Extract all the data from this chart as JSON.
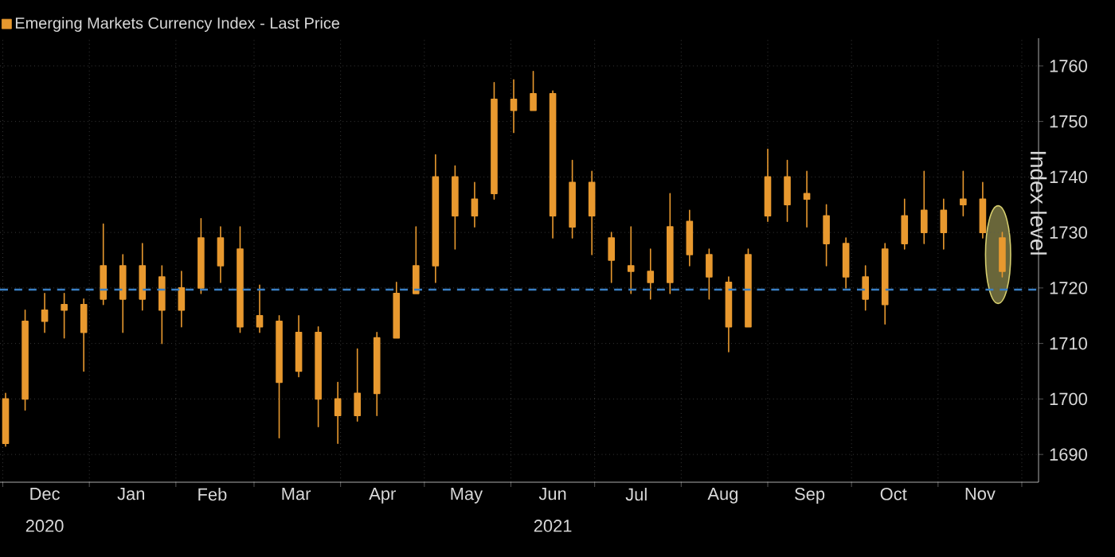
{
  "chart_data": {
    "type": "candlestick",
    "ylabel": "Index level",
    "annotations": [
      "2020",
      "2021"
    ],
    "x": [
      "2020-12-02",
      "2020-12-09",
      "2020-12-16",
      "2020-12-23",
      "2020-12-30",
      "2021-01-06",
      "2021-01-13",
      "2021-01-20",
      "2021-01-27",
      "2021-02-03",
      "2021-02-10",
      "2021-02-17",
      "2021-02-24",
      "2021-03-03",
      "2021-03-10",
      "2021-03-17",
      "2021-03-24",
      "2021-03-31",
      "2021-04-07",
      "2021-04-14",
      "2021-04-21",
      "2021-04-28",
      "2021-05-05",
      "2021-05-12",
      "2021-05-19",
      "2021-05-26",
      "2021-06-02",
      "2021-06-09",
      "2021-06-16",
      "2021-06-23",
      "2021-06-30",
      "2021-07-07",
      "2021-07-14",
      "2021-07-21",
      "2021-07-28",
      "2021-08-04",
      "2021-08-11",
      "2021-08-18",
      "2021-08-25",
      "2021-09-01",
      "2021-09-08",
      "2021-09-15",
      "2021-09-22",
      "2021-09-29",
      "2021-10-06",
      "2021-10-13",
      "2021-10-20",
      "2021-10-27",
      "2021-11-03",
      "2021-11-10",
      "2021-11-17",
      "2021-11-24"
    ],
    "series": [
      {
        "name": "Emerging Markets Currency Index - Last Price",
        "color": "#e8992f",
        "ohlc": [
          [
            1692,
            1701,
            1691.5,
            1700
          ],
          [
            1700,
            1716,
            1698,
            1714
          ],
          [
            1714,
            1719,
            1712,
            1716
          ],
          [
            1716,
            1719,
            1711,
            1717
          ],
          [
            1717,
            1718,
            1705,
            1712
          ],
          [
            1718,
            1731.5,
            1717,
            1724
          ],
          [
            1724,
            1726,
            1712,
            1718
          ],
          [
            1718,
            1728,
            1716,
            1724
          ],
          [
            1722,
            1724,
            1710,
            1716
          ],
          [
            1716,
            1723,
            1713,
            1720
          ],
          [
            1720,
            1732.5,
            1719,
            1729
          ],
          [
            1729,
            1731,
            1721,
            1724
          ],
          [
            1727,
            1731,
            1712,
            1713
          ],
          [
            1713,
            1720.5,
            1712,
            1715
          ],
          [
            1714,
            1715,
            1693,
            1703
          ],
          [
            1705,
            1715,
            1704,
            1712
          ],
          [
            1712,
            1713,
            1695,
            1700
          ],
          [
            1700,
            1703,
            1692,
            1697
          ],
          [
            1697,
            1709,
            1696,
            1701
          ],
          [
            1701,
            1712,
            1697,
            1711
          ],
          [
            1711,
            1721,
            1711,
            1719
          ],
          [
            1719,
            1731,
            1719,
            1724
          ],
          [
            1724,
            1744,
            1721,
            1740
          ],
          [
            1740,
            1742,
            1727,
            1733
          ],
          [
            1733,
            1739,
            1731,
            1736
          ],
          [
            1737,
            1757,
            1736,
            1754
          ],
          [
            1754,
            1757.5,
            1748,
            1752
          ],
          [
            1752,
            1759,
            1752,
            1755
          ],
          [
            1755,
            1755.5,
            1729,
            1733
          ],
          [
            1731,
            1743,
            1729,
            1739
          ],
          [
            1739,
            1741,
            1726,
            1733
          ],
          [
            1729,
            1730,
            1721,
            1725
          ],
          [
            1724,
            1731,
            1719,
            1723
          ],
          [
            1723,
            1727,
            1718,
            1721
          ],
          [
            1721,
            1737,
            1719,
            1731
          ],
          [
            1732,
            1734,
            1724,
            1726
          ],
          [
            1726,
            1727,
            1718,
            1722
          ],
          [
            1721,
            1722,
            1708.5,
            1713
          ],
          [
            1713,
            1727,
            1713,
            1726
          ],
          [
            1733,
            1745,
            1732,
            1740
          ],
          [
            1740,
            1743,
            1732,
            1735
          ],
          [
            1736,
            1741,
            1731,
            1737
          ],
          [
            1733,
            1735,
            1724,
            1728
          ],
          [
            1728,
            1729,
            1720,
            1722
          ],
          [
            1722,
            1724,
            1716,
            1718
          ],
          [
            1717,
            1728,
            1713.5,
            1727
          ],
          [
            1728,
            1736,
            1727,
            1733
          ],
          [
            1734,
            1741,
            1728,
            1730
          ],
          [
            1730,
            1736,
            1727,
            1734
          ],
          [
            1735,
            1741,
            1733,
            1736
          ],
          [
            1736,
            1739,
            1729,
            1730
          ],
          [
            1729,
            1730,
            1722,
            1723
          ]
        ]
      }
    ],
    "xlim": [
      "2020-11-30",
      "2021-12-07"
    ],
    "xticks": [
      {
        "value": "2020-12-01",
        "label": null
      },
      {
        "value": "2021-01-01",
        "label": null
      },
      {
        "value": "2021-02-01",
        "label": null
      },
      {
        "value": "2021-03-01",
        "label": null
      },
      {
        "value": "2021-04-01",
        "label": null
      },
      {
        "value": "2021-05-01",
        "label": null
      },
      {
        "value": "2021-06-01",
        "label": null
      },
      {
        "value": "2021-07-01",
        "label": null
      },
      {
        "value": "2021-08-01",
        "label": null
      },
      {
        "value": "2021-09-01",
        "label": null
      },
      {
        "value": "2021-10-01",
        "label": null
      },
      {
        "value": "2021-11-01",
        "label": null
      },
      {
        "value": "2021-12-01",
        "label": null
      },
      {
        "value": "2020-12-16",
        "label": "Dec"
      },
      {
        "value": "2021-01-16",
        "label": "Jan"
      },
      {
        "value": "2021-02-14",
        "label": "Feb"
      },
      {
        "value": "2021-03-16",
        "label": "Mar"
      },
      {
        "value": "2021-04-16",
        "label": "Apr"
      },
      {
        "value": "2021-05-16",
        "label": "May"
      },
      {
        "value": "2021-06-16",
        "label": "Jun"
      },
      {
        "value": "2021-07-16",
        "label": "Jul"
      },
      {
        "value": "2021-08-16",
        "label": "Aug"
      },
      {
        "value": "2021-09-16",
        "label": "Sep"
      },
      {
        "value": "2021-10-16",
        "label": "Oct"
      },
      {
        "value": "2021-11-16",
        "label": "Nov"
      }
    ],
    "ylim": [
      1685,
      1765
    ],
    "yticks": [
      1690,
      1700,
      1710,
      1720,
      1730,
      1740,
      1750,
      1760
    ],
    "ref_lines": [
      {
        "axis": "y",
        "value": 1719.7,
        "color": "#3a7fc4",
        "line_style": "dashed"
      }
    ],
    "grid": true,
    "legend": "top left"
  }
}
